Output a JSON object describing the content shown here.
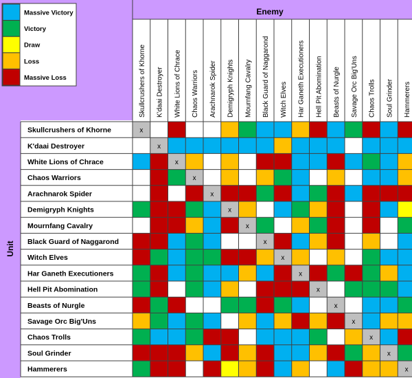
{
  "chart_data": {
    "type": "heatmap",
    "axis_title_top": "Enemy",
    "axis_title_left": "Unit",
    "legend": [
      {
        "key": "MV",
        "label": "Massive Victory",
        "color": "#00b0f0"
      },
      {
        "key": "V",
        "label": "Victory",
        "color": "#00b050"
      },
      {
        "key": "D",
        "label": "Draw",
        "color": "#ffff00"
      },
      {
        "key": "L",
        "label": "Loss",
        "color": "#ffc000"
      },
      {
        "key": "ML",
        "label": "Massive Loss",
        "color": "#c00000"
      }
    ],
    "columns": [
      "Skullcrushers of Khorne",
      "K'daai Destroyer",
      "White Lions of Chrace",
      "Chaos Warriors",
      "Arachnarok Spider",
      "Demigryph Knights",
      "Mournfang Cavalry",
      "Black Guard of Naggarond",
      "Witch Elves",
      "Har Ganeth Executioners",
      "Hell Pit Abomination",
      "Beasts of Nurgle",
      "Savage Orc Big'Uns",
      "Chaos Trolls",
      "Soul Grinder",
      "Hammerers"
    ],
    "rows": [
      "Skullcrushers of Khorne",
      "K'daai Destroyer",
      "White Lions of Chrace",
      "Chaos Warriors",
      "Arachnarok Spider",
      "Demigryph Knights",
      "Mournfang Cavalry",
      "Black Guard of Naggarond",
      "Witch Elves",
      "Har Ganeth Executioners",
      "Hell Pit Abomination",
      "Beasts of Nurgle",
      "Savage Orc Big'Uns",
      "Chaos Trolls",
      "Soul Grinder",
      "Hammerers"
    ],
    "self_marker": "x",
    "blank_color": "#ffffff",
    "cells": [
      [
        "X",
        "",
        "ML",
        "",
        "",
        "L",
        "V",
        "MV",
        "MV",
        "L",
        "ML",
        "MV",
        "V",
        "ML",
        "MV",
        "ML"
      ],
      [
        "",
        "X",
        "MV",
        "MV",
        "MV",
        "MV",
        "MV",
        "MV",
        "L",
        "MV",
        "MV",
        "MV",
        "",
        "MV",
        "MV",
        "MV"
      ],
      [
        "MV",
        "ML",
        "X",
        "L",
        "",
        "L",
        "",
        "ML",
        "ML",
        "MV",
        "MV",
        "ML",
        "MV",
        "V",
        "MV",
        "L"
      ],
      [
        "",
        "ML",
        "V",
        "X",
        "",
        "L",
        "",
        "L",
        "V",
        "MV",
        "",
        "L",
        "",
        "MV",
        "MV",
        "L"
      ],
      [
        "",
        "ML",
        "",
        "ML",
        "X",
        "ML",
        "ML",
        "V",
        "ML",
        "MV",
        "V",
        "ML",
        "MV",
        "ML",
        "ML",
        "ML"
      ],
      [
        "V",
        "ML",
        "ML",
        "V",
        "MV",
        "X",
        "L",
        "",
        "MV",
        "V",
        "L",
        "ML",
        "",
        "ML",
        "MV",
        "D"
      ],
      [
        "",
        "ML",
        "ML",
        "L",
        "MV",
        "ML",
        "X",
        "V",
        "",
        "L",
        "V",
        "ML",
        "",
        "ML",
        "",
        "V"
      ],
      [
        "ML",
        "ML",
        "MV",
        "V",
        "MV",
        "",
        "",
        "X",
        "ML",
        "MV",
        "L",
        "ML",
        "",
        "L",
        "",
        "MV"
      ],
      [
        "ML",
        "V",
        "MV",
        "V",
        "V",
        "ML",
        "ML",
        "L",
        "X",
        "L",
        "",
        "L",
        "",
        "V",
        "MV",
        "MV"
      ],
      [
        "V",
        "ML",
        "MV",
        "V",
        "MV",
        "MV",
        "L",
        "MV",
        "ML",
        "X",
        "ML",
        "V",
        "ML",
        "V",
        "L",
        "MV"
      ],
      [
        "V",
        "ML",
        "",
        "V",
        "MV",
        "L",
        "",
        "ML",
        "ML",
        "ML",
        "X",
        "",
        "V",
        "V",
        "V",
        "MV"
      ],
      [
        "ML",
        "V",
        "ML",
        "",
        "",
        "V",
        "V",
        "ML",
        "V",
        "MV",
        "",
        "X",
        "",
        "MV",
        "MV",
        "V"
      ],
      [
        "L",
        "V",
        "MV",
        "V",
        "MV",
        "",
        "L",
        "MV",
        "L",
        "ML",
        "L",
        "ML",
        "X",
        "MV",
        "L",
        "L"
      ],
      [
        "V",
        "MV",
        "MV",
        "V",
        "ML",
        "ML",
        "",
        "MV",
        "MV",
        "MV",
        "V",
        "",
        "L",
        "X",
        "MV",
        "ML"
      ],
      [
        "ML",
        "ML",
        "ML",
        "L",
        "MV",
        "ML",
        "L",
        "ML",
        "MV",
        "MV",
        "L",
        "ML",
        "V",
        "L",
        "X",
        "V"
      ],
      [
        "V",
        "ML",
        "ML",
        "",
        "ML",
        "D",
        "L",
        "ML",
        "MV",
        "L",
        "",
        "MV",
        "ML",
        "L",
        "L",
        "X"
      ]
    ]
  }
}
